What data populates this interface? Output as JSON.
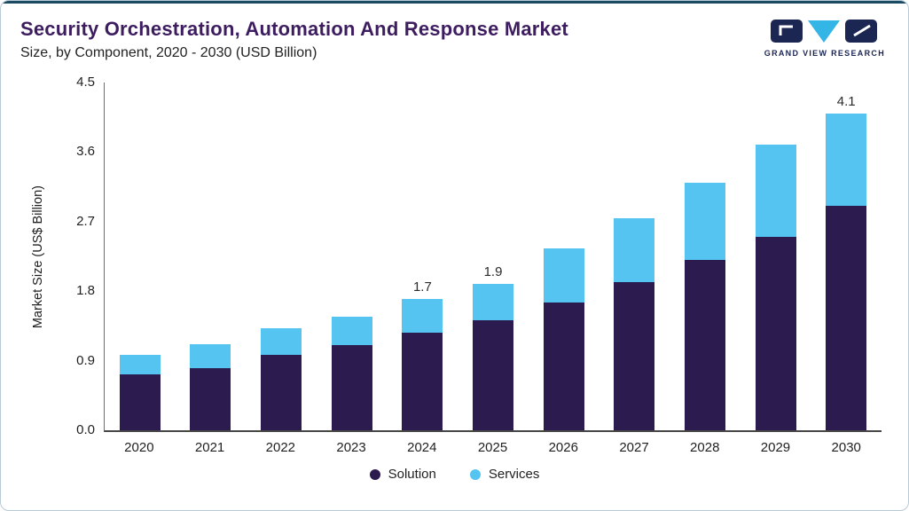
{
  "header": {
    "title": "Security Orchestration, Automation And Response Market",
    "subtitle": "Size, by Component, 2020 - 2030 (USD Billion)"
  },
  "logo": {
    "text": "GRAND VIEW RESEARCH"
  },
  "colors": {
    "solution": "#2B1B4E",
    "services": "#55C4F1",
    "title_purple": "#3D1D5F",
    "top_accent": "#1B4A63",
    "card_border": "#B8CAD5",
    "logo_navy": "#1B2653",
    "logo_cyan": "#33B5E5"
  },
  "chart_data": {
    "type": "bar",
    "stacked": true,
    "title": "Security Orchestration, Automation And Response Market Size, by Component, 2020 - 2030 (USD Billion)",
    "xlabel": "",
    "ylabel": "Market Size (US$ Billion)",
    "ylim": [
      0,
      4.5
    ],
    "ytick_labels": [
      "0.0",
      "0.9",
      "1.8",
      "2.7",
      "3.6",
      "4.5"
    ],
    "grid": false,
    "legend_position": "bottom",
    "categories": [
      "2020",
      "2021",
      "2022",
      "2023",
      "2024",
      "2025",
      "2026",
      "2027",
      "2028",
      "2029",
      "2030"
    ],
    "series": [
      {
        "name": "Solution",
        "color": "#2B1B4E",
        "values": [
          0.72,
          0.8,
          0.98,
          1.1,
          1.26,
          1.42,
          1.65,
          1.92,
          2.2,
          2.5,
          2.9
        ]
      },
      {
        "name": "Services",
        "color": "#55C4F1",
        "values": [
          0.26,
          0.31,
          0.34,
          0.37,
          0.44,
          0.48,
          0.7,
          0.82,
          1.0,
          1.2,
          1.2
        ]
      }
    ],
    "totals": [
      0.98,
      1.11,
      1.32,
      1.47,
      1.7,
      1.9,
      2.35,
      2.74,
      3.2,
      3.7,
      4.1
    ],
    "bar_labels": {
      "2024": "1.7",
      "2025": "1.9",
      "2030": "4.1"
    }
  }
}
